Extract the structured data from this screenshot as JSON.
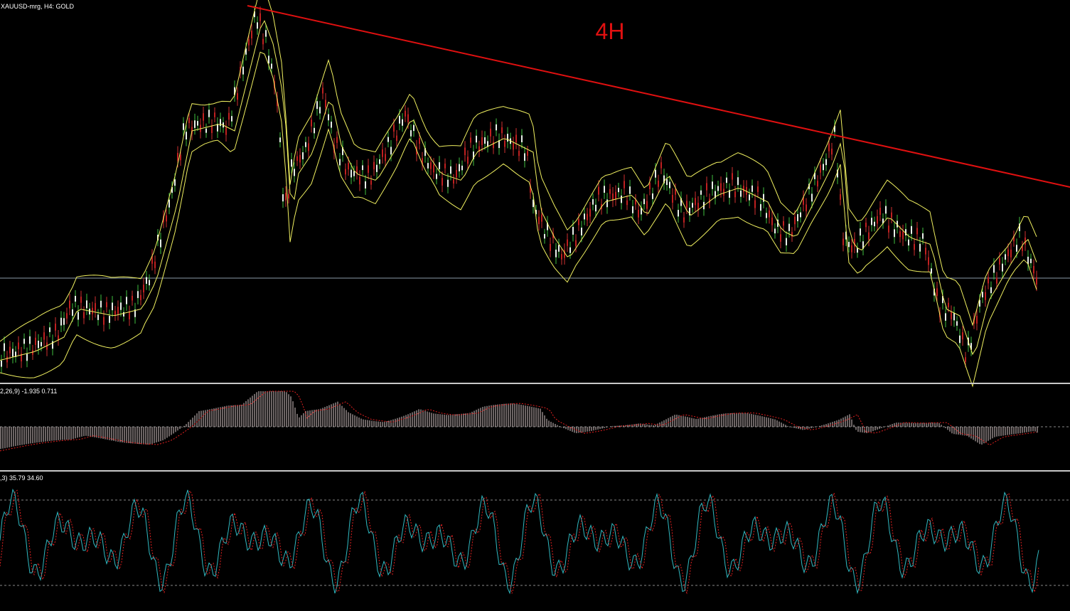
{
  "header": {
    "symbol": "XAUUSD-mrg, H4:  GOLD"
  },
  "annotation": "4H",
  "macd_panel": {
    "label": "2,26,9) -1.935 0.711"
  },
  "stoch_panel": {
    "label": ",3) 35.79 34.60"
  }
}
